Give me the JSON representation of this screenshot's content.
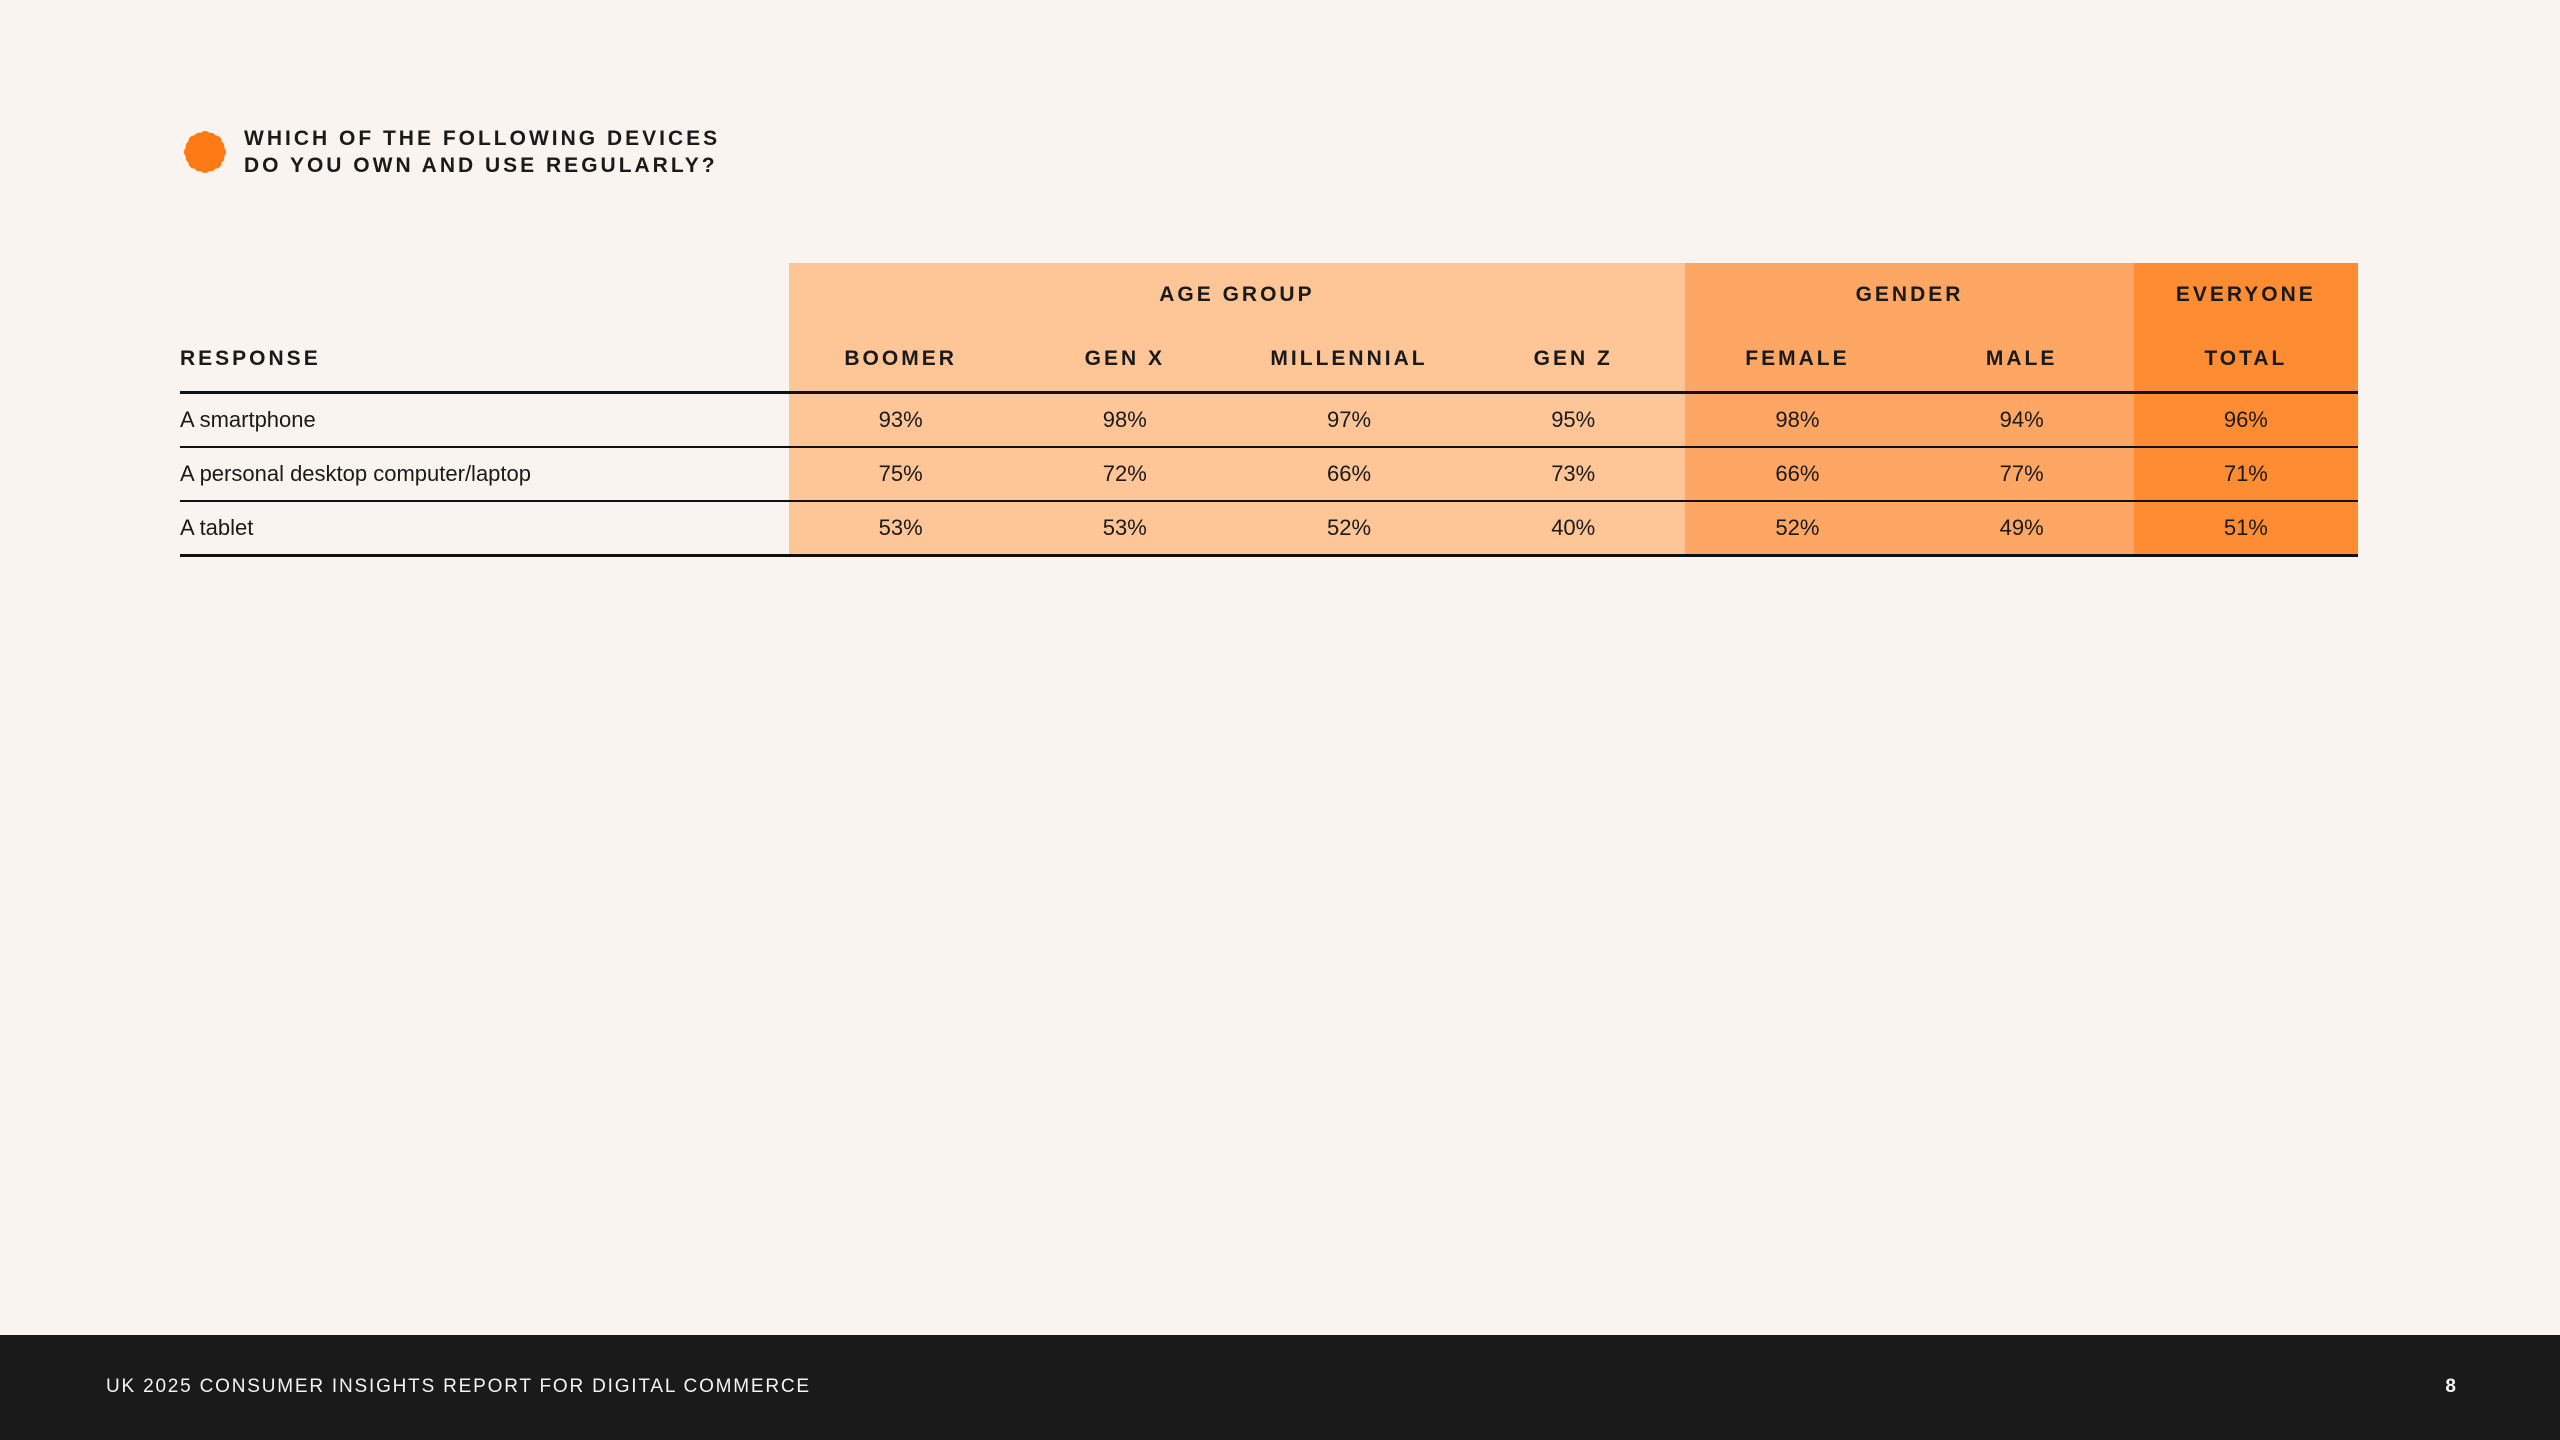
{
  "question": {
    "line1": "WHICH OF THE FOLLOWING DEVICES",
    "line2": "DO YOU OWN AND USE REGULARLY?",
    "icon": "flower-icon"
  },
  "colors": {
    "background": "#f9f4ef",
    "age_group": "#fec597",
    "gender": "#fea663",
    "everyone": "#fe8c33",
    "icon": "#fe7a14",
    "footer": "#1a1a1a"
  },
  "table": {
    "groups": {
      "age": "AGE GROUP",
      "gender": "GENDER",
      "everyone": "EVERYONE"
    },
    "response_header": "RESPONSE",
    "columns": [
      "BOOMER",
      "GEN X",
      "MILLENNIAL",
      "GEN Z",
      "FEMALE",
      "MALE",
      "TOTAL"
    ],
    "rows": [
      {
        "label": "A smartphone",
        "values": [
          "93%",
          "98%",
          "97%",
          "95%",
          "98%",
          "94%",
          "96%"
        ]
      },
      {
        "label": "A personal desktop computer/laptop",
        "values": [
          "75%",
          "72%",
          "66%",
          "73%",
          "66%",
          "77%",
          "71%"
        ]
      },
      {
        "label": "A tablet",
        "values": [
          "53%",
          "53%",
          "52%",
          "40%",
          "52%",
          "49%",
          "51%"
        ]
      }
    ]
  },
  "footer": {
    "title": "UK 2025 CONSUMER INSIGHTS REPORT FOR DIGITAL COMMERCE",
    "page": "8"
  }
}
